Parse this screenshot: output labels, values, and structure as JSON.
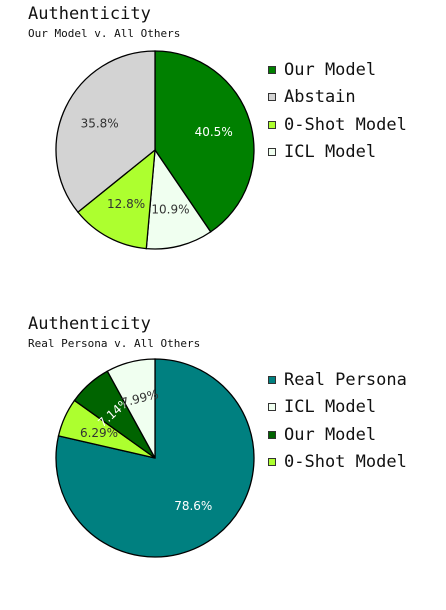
{
  "chart_data": [
    {
      "type": "pie",
      "title": "Authenticity",
      "subtitle": "Our Model v. All Others",
      "legend_position": "right",
      "slices": [
        {
          "name": "Our Model",
          "value": 40.5,
          "label": "40.5%",
          "color": "#008000",
          "label_color": "#ffffff",
          "label_rotated": false
        },
        {
          "name": "ICL Model",
          "value": 10.9,
          "label": "10.9%",
          "color": "#f0fff0",
          "label_color": "#333333",
          "label_rotated": false
        },
        {
          "name": "0-Shot Model",
          "value": 12.8,
          "label": "12.8%",
          "color": "#adff2f",
          "label_color": "#333333",
          "label_rotated": false
        },
        {
          "name": "Abstain",
          "value": 35.8,
          "label": "35.8%",
          "color": "#d3d3d3",
          "label_color": "#333333",
          "label_rotated": false
        }
      ],
      "legend": [
        {
          "name": "Our Model",
          "color": "#008000"
        },
        {
          "name": "Abstain",
          "color": "#d3d3d3"
        },
        {
          "name": "0-Shot Model",
          "color": "#adff2f"
        },
        {
          "name": "ICL Model",
          "color": "#f0fff0"
        }
      ]
    },
    {
      "type": "pie",
      "title": "Authenticity",
      "subtitle": "Real Persona v. All Others",
      "legend_position": "right",
      "slices": [
        {
          "name": "Real Persona",
          "value": 78.6,
          "label": "78.6%",
          "color": "#008080",
          "label_color": "#ffffff",
          "label_rotated": false
        },
        {
          "name": "0-Shot Model",
          "value": 6.29,
          "label": "6.29%",
          "color": "#adff2f",
          "label_color": "#333333",
          "label_rotated": false
        },
        {
          "name": "Our Model",
          "value": 7.14,
          "label": "7.14%",
          "color": "#006400",
          "label_color": "#ffffff",
          "label_rotated": true
        },
        {
          "name": "ICL Model",
          "value": 7.99,
          "label": "7.99%",
          "color": "#f0fff0",
          "label_color": "#333333",
          "label_rotated": true
        }
      ],
      "legend": [
        {
          "name": "Real Persona",
          "color": "#008080"
        },
        {
          "name": "ICL Model",
          "color": "#f0fff0"
        },
        {
          "name": "Our Model",
          "color": "#006400"
        },
        {
          "name": "0-Shot Model",
          "color": "#adff2f"
        }
      ]
    }
  ]
}
